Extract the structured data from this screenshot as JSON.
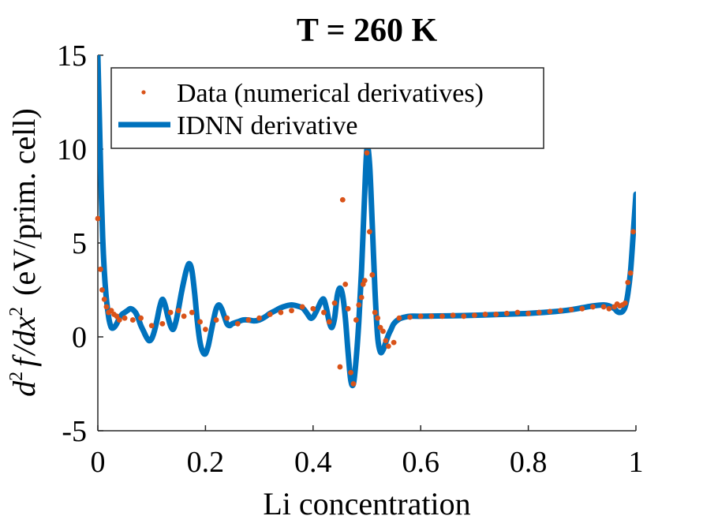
{
  "chart_data": {
    "type": "line",
    "title": "T = 260 K",
    "xlabel": "Li concentration",
    "ylabel": "d²f/dx² (eV/prim. cell)",
    "ylabel_parts": {
      "d": "d",
      "d_exp": "2",
      "f": "f",
      "dx": "/dx",
      "dx_exp": "2",
      "units": "(eV/prim.  cell)"
    },
    "xlim": [
      0,
      1
    ],
    "ylim": [
      -5,
      15
    ],
    "xticks": [
      0,
      0.2,
      0.4,
      0.6,
      0.8,
      1
    ],
    "xtick_labels": [
      "0",
      "0.2",
      "0.4",
      "0.6",
      "0.8",
      "1"
    ],
    "yticks": [
      -5,
      0,
      5,
      10,
      15
    ],
    "ytick_labels": [
      "-5",
      "0",
      "5",
      "10",
      "15"
    ],
    "grid": false,
    "legend_position": "top-left",
    "colors": {
      "data": "#D95319",
      "line": "#0072BD",
      "axis": "#262626",
      "text": "#000000"
    },
    "series": [
      {
        "name": "Data (numerical derivatives)",
        "kind": "scatter",
        "x": [
          0.0,
          0.005,
          0.008,
          0.012,
          0.016,
          0.02,
          0.025,
          0.03,
          0.035,
          0.04,
          0.05,
          0.065,
          0.08,
          0.1,
          0.12,
          0.135,
          0.15,
          0.16,
          0.175,
          0.19,
          0.2,
          0.22,
          0.24,
          0.26,
          0.28,
          0.3,
          0.32,
          0.34,
          0.36,
          0.38,
          0.4,
          0.42,
          0.43,
          0.44,
          0.45,
          0.455,
          0.46,
          0.465,
          0.47,
          0.475,
          0.48,
          0.485,
          0.49,
          0.493,
          0.496,
          0.5,
          0.505,
          0.51,
          0.515,
          0.52,
          0.525,
          0.53,
          0.535,
          0.54,
          0.55,
          0.56,
          0.58,
          0.6,
          0.62,
          0.64,
          0.66,
          0.68,
          0.7,
          0.72,
          0.74,
          0.76,
          0.78,
          0.8,
          0.82,
          0.84,
          0.86,
          0.88,
          0.9,
          0.92,
          0.94,
          0.95,
          0.96,
          0.965,
          0.97,
          0.975,
          0.98,
          0.985,
          0.99,
          0.995
        ],
        "y": [
          6.3,
          3.6,
          2.5,
          2.0,
          1.6,
          1.3,
          1.4,
          1.2,
          1.1,
          0.9,
          1.0,
          0.9,
          1.0,
          0.6,
          0.7,
          1.3,
          1.4,
          1.1,
          1.3,
          0.8,
          0.4,
          0.9,
          1.0,
          0.7,
          0.9,
          1.0,
          1.2,
          1.3,
          1.4,
          1.6,
          1.5,
          1.3,
          0.8,
          1.8,
          -1.6,
          7.3,
          2.8,
          1.5,
          -1.9,
          -2.5,
          0.9,
          1.7,
          2.1,
          2.8,
          3.0,
          9.8,
          5.6,
          3.3,
          1.3,
          1.0,
          0.5,
          0.3,
          -0.2,
          -0.5,
          -0.3,
          1.0,
          1.05,
          1.1,
          1.1,
          1.1,
          1.15,
          1.1,
          1.15,
          1.2,
          1.2,
          1.25,
          1.3,
          1.25,
          1.3,
          1.35,
          1.4,
          1.45,
          1.5,
          1.6,
          1.6,
          1.5,
          1.6,
          1.75,
          1.65,
          1.7,
          1.8,
          2.9,
          3.4,
          5.6
        ]
      },
      {
        "name": "IDNN derivative",
        "kind": "line",
        "x": [
          0.0,
          0.003,
          0.006,
          0.009,
          0.012,
          0.015,
          0.018,
          0.021,
          0.025,
          0.03,
          0.035,
          0.04,
          0.045,
          0.05,
          0.055,
          0.06,
          0.065,
          0.07,
          0.075,
          0.08,
          0.085,
          0.09,
          0.095,
          0.1,
          0.105,
          0.11,
          0.115,
          0.12,
          0.125,
          0.13,
          0.135,
          0.14,
          0.145,
          0.15,
          0.155,
          0.16,
          0.165,
          0.17,
          0.175,
          0.18,
          0.185,
          0.19,
          0.195,
          0.2,
          0.205,
          0.21,
          0.215,
          0.22,
          0.225,
          0.23,
          0.235,
          0.24,
          0.245,
          0.25,
          0.26,
          0.27,
          0.28,
          0.29,
          0.3,
          0.31,
          0.32,
          0.33,
          0.34,
          0.35,
          0.36,
          0.37,
          0.38,
          0.385,
          0.39,
          0.395,
          0.4,
          0.405,
          0.41,
          0.415,
          0.42,
          0.425,
          0.43,
          0.435,
          0.44,
          0.445,
          0.45,
          0.455,
          0.46,
          0.465,
          0.47,
          0.475,
          0.48,
          0.485,
          0.49,
          0.495,
          0.5,
          0.505,
          0.51,
          0.515,
          0.52,
          0.525,
          0.53,
          0.535,
          0.54,
          0.545,
          0.55,
          0.56,
          0.57,
          0.58,
          0.6,
          0.65,
          0.7,
          0.75,
          0.8,
          0.85,
          0.88,
          0.9,
          0.92,
          0.94,
          0.95,
          0.96,
          0.965,
          0.97,
          0.975,
          0.98,
          0.985,
          0.99,
          0.995,
          1.0
        ],
        "y": [
          15.0,
          11.5,
          8.0,
          5.3,
          3.5,
          2.3,
          1.5,
          0.9,
          0.5,
          0.5,
          0.7,
          1.0,
          1.2,
          1.3,
          1.4,
          1.5,
          1.45,
          1.3,
          1.0,
          0.6,
          0.3,
          0.0,
          -0.2,
          -0.1,
          0.3,
          0.9,
          1.6,
          2.0,
          1.7,
          1.1,
          0.6,
          0.4,
          0.8,
          1.5,
          2.3,
          3.0,
          3.6,
          3.9,
          3.5,
          2.3,
          0.8,
          -0.3,
          -0.8,
          -0.9,
          -0.5,
          0.2,
          0.9,
          1.5,
          1.7,
          1.5,
          1.1,
          0.7,
          0.6,
          0.7,
          0.8,
          0.9,
          0.9,
          0.85,
          0.9,
          1.05,
          1.25,
          1.4,
          1.55,
          1.65,
          1.7,
          1.65,
          1.55,
          1.4,
          1.2,
          1.0,
          1.05,
          1.3,
          1.6,
          1.9,
          2.0,
          1.5,
          0.8,
          0.5,
          1.0,
          2.2,
          2.6,
          2.2,
          1.0,
          -0.8,
          -2.3,
          -2.5,
          -1.2,
          0.8,
          3.5,
          7.0,
          10.0,
          9.2,
          6.0,
          2.5,
          0.0,
          -0.8,
          -0.7,
          -0.3,
          0.1,
          0.4,
          0.7,
          0.95,
          1.05,
          1.1,
          1.1,
          1.12,
          1.15,
          1.2,
          1.25,
          1.35,
          1.45,
          1.55,
          1.65,
          1.7,
          1.65,
          1.5,
          1.35,
          1.3,
          1.35,
          1.6,
          2.3,
          3.5,
          5.5,
          7.6
        ]
      }
    ]
  }
}
